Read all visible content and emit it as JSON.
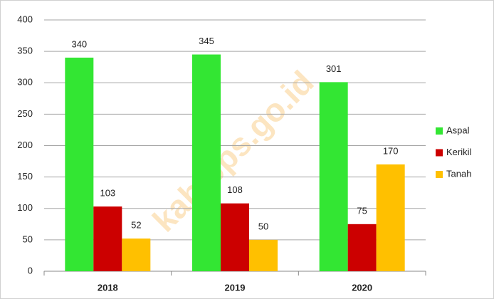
{
  "chart_data": {
    "type": "bar",
    "watermark": "kab.bps.go.id",
    "categories": [
      "2018",
      "2019",
      "2020"
    ],
    "series": [
      {
        "name": "Aspal",
        "color": "#33e633",
        "values": [
          340,
          345,
          301
        ]
      },
      {
        "name": "Kerikil",
        "color": "#cc0000",
        "values": [
          103,
          108,
          75
        ]
      },
      {
        "name": "Tanah",
        "color": "#ffc000",
        "values": [
          52,
          50,
          170
        ]
      }
    ],
    "ylim": [
      0,
      400
    ],
    "yticks": [
      0,
      50,
      100,
      150,
      200,
      250,
      300,
      350,
      400
    ],
    "grid": true,
    "legend": "right"
  }
}
